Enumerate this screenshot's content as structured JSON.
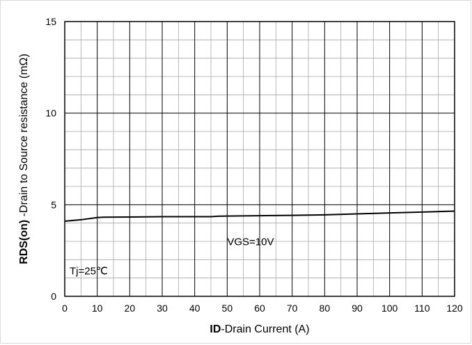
{
  "chart_data": {
    "type": "line",
    "xlabel": {
      "bold": "ID",
      "rest": "-Drain Current (A)"
    },
    "ylabel": {
      "bold": "RDS(on)",
      "rest": " -Drain to Source resistance (mΩ)"
    },
    "xlim": [
      0,
      120
    ],
    "ylim": [
      0,
      15
    ],
    "x_ticks": [
      "0",
      "10",
      "20",
      "30",
      "40",
      "50",
      "60",
      "70",
      "80",
      "90",
      "100",
      "110",
      "120"
    ],
    "y_ticks": [
      "0",
      "5",
      "10",
      "15"
    ],
    "grid": true,
    "series": [
      {
        "x": [
          0,
          5,
          10,
          12,
          20,
          30,
          40,
          45,
          47,
          50,
          60,
          70,
          80,
          90,
          100,
          110,
          120
        ],
        "y": [
          4.1,
          4.18,
          4.3,
          4.32,
          4.33,
          4.35,
          4.35,
          4.35,
          4.37,
          4.38,
          4.4,
          4.42,
          4.45,
          4.5,
          4.55,
          4.6,
          4.65
        ]
      }
    ],
    "annotations": [
      {
        "text": "VGS=10V",
        "x": 50,
        "y": 2.8
      },
      {
        "text": "Tj=25℃",
        "x": 1.5,
        "y": 1.2
      }
    ]
  }
}
